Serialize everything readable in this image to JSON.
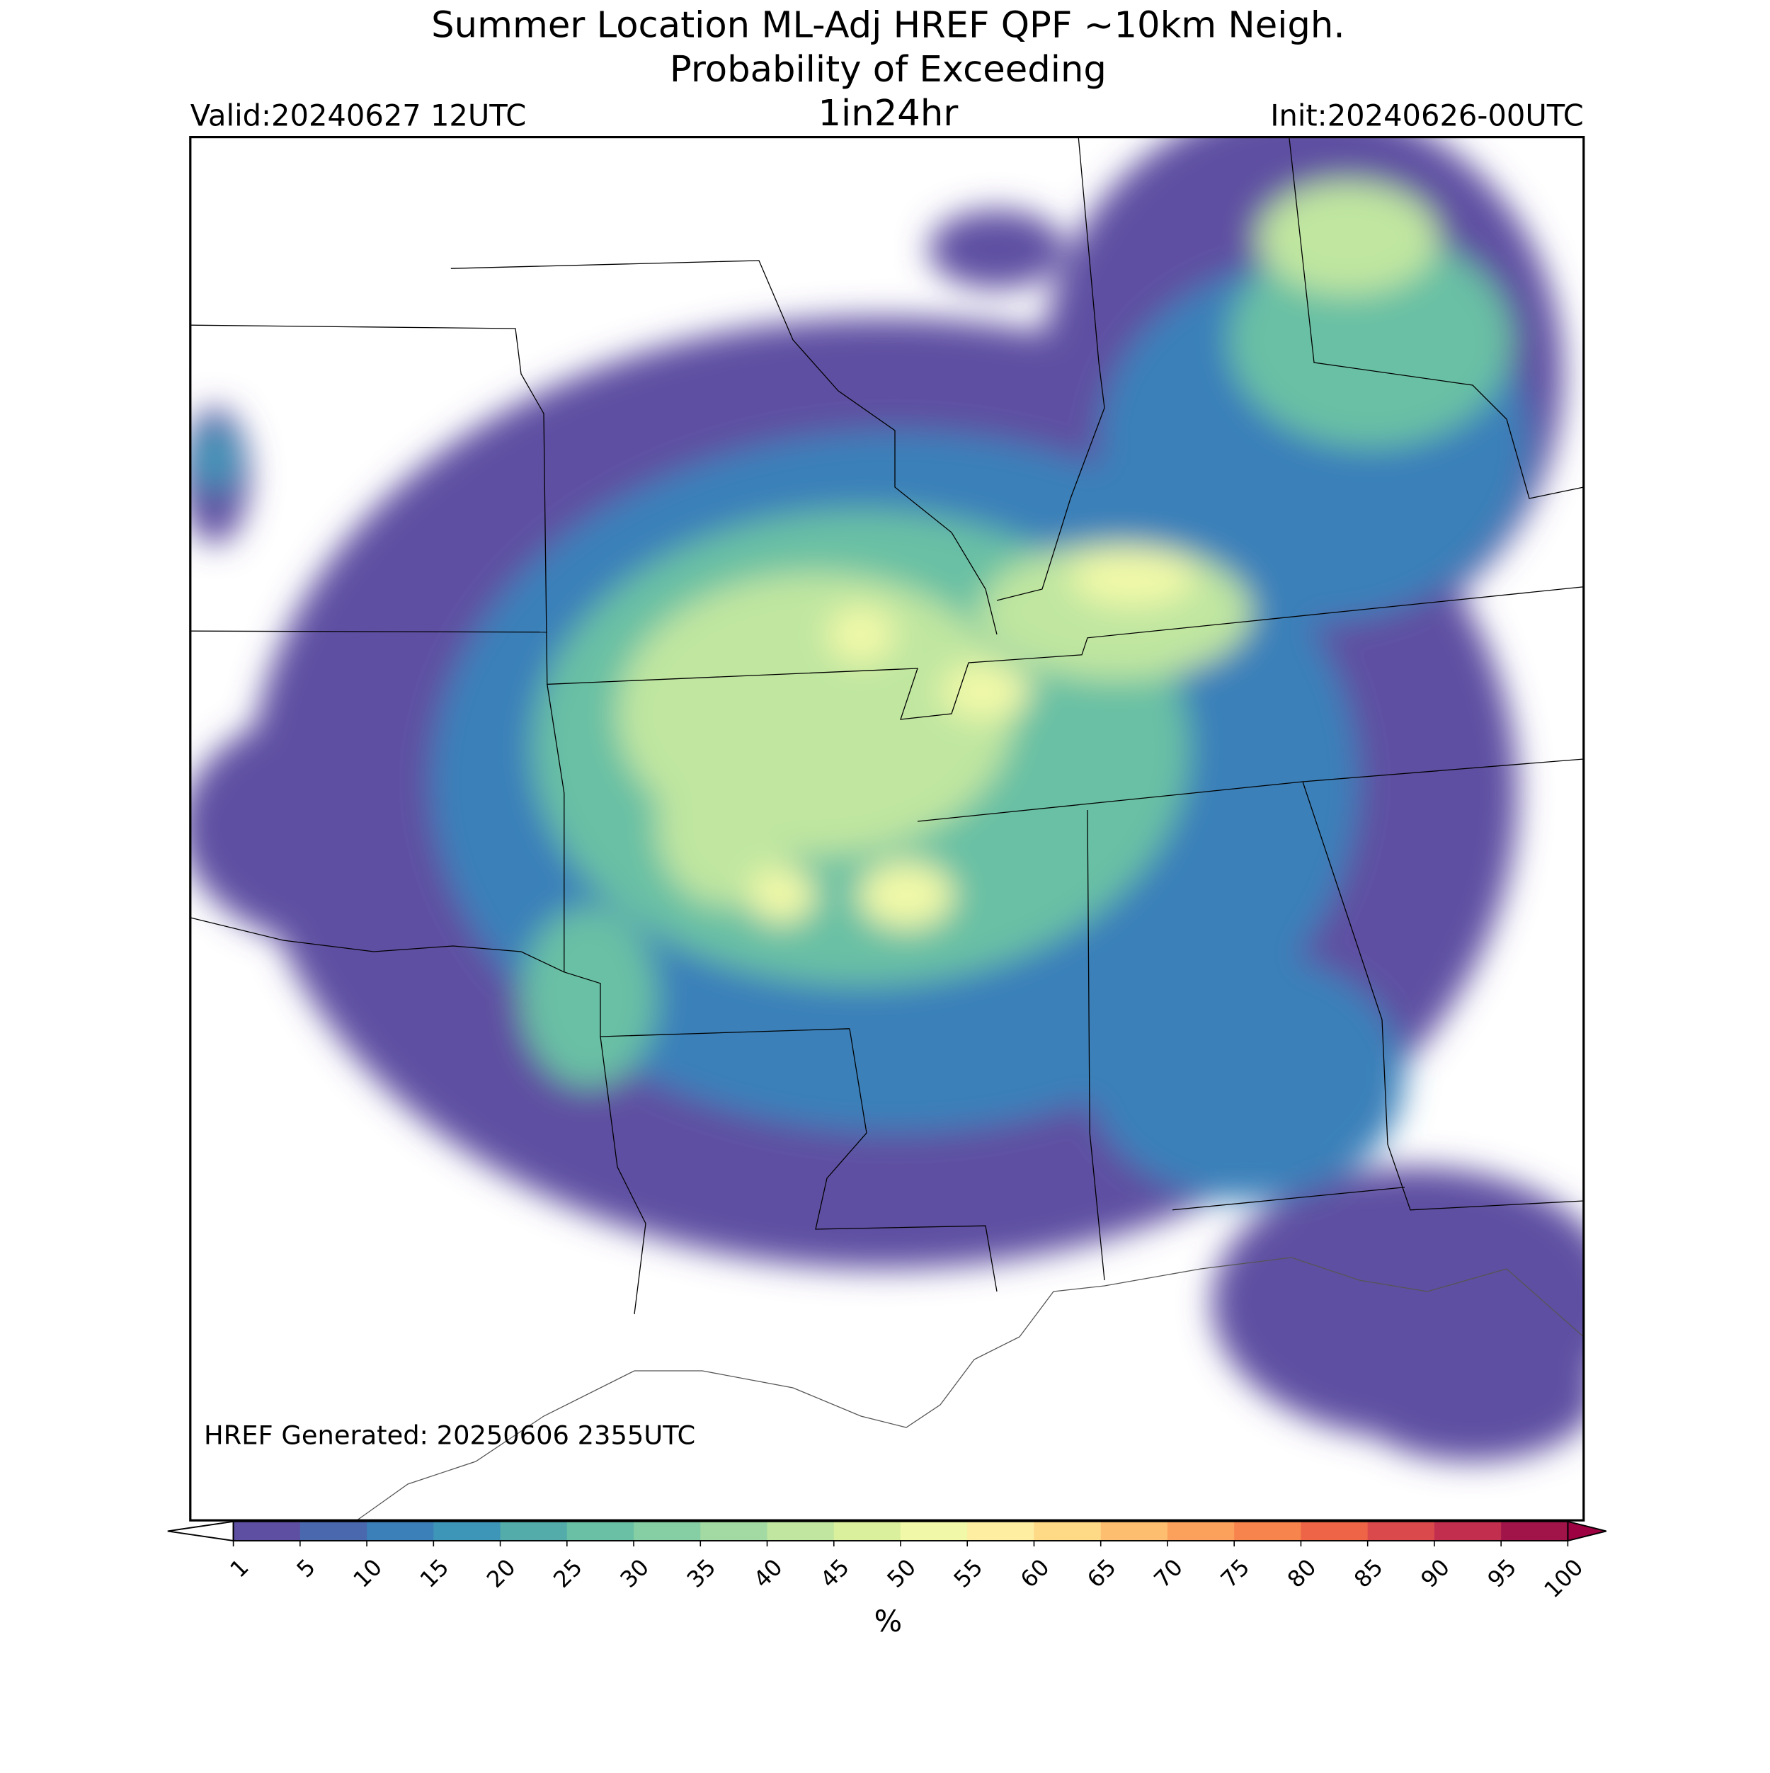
{
  "title": [
    "Summer Location ML-Adj HREF QPF ~10km Neigh.",
    "Probability of Exceeding"
  ],
  "period": "1in24hr",
  "valid": "Valid:20240627 12UTC",
  "init": "Init:20240626-00UTC",
  "generated": "HREF Generated: 20250606 2355UTC",
  "colorbar": {
    "label": "%",
    "ticks": [
      1,
      5,
      10,
      15,
      20,
      25,
      30,
      35,
      40,
      45,
      50,
      55,
      60,
      65,
      70,
      75,
      80,
      85,
      90,
      95,
      100
    ],
    "colors": [
      "#5e4fa2",
      "#4a68ae",
      "#3b80b9",
      "#3d95b8",
      "#53acaa",
      "#69c0a4",
      "#86cea4",
      "#a3daa3",
      "#c0e6a0",
      "#dbf09d",
      "#f1f9a8",
      "#feeea1",
      "#fed986",
      "#fdbf6f",
      "#fca15b",
      "#f7834d",
      "#ed6447",
      "#da4a4c",
      "#c22e4d",
      "#a0144a"
    ],
    "under_color": "#ffffff",
    "over_color": "#9e0142"
  }
}
